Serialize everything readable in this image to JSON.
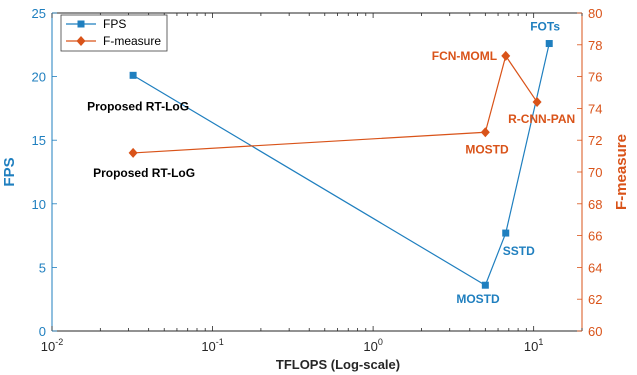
{
  "chart_data": {
    "type": "line",
    "xlabel": "TFLOPS (Log-scale)",
    "ylabel_left": "FPS",
    "ylabel_right": "F-measure",
    "x_scale": "log",
    "xlim": [
      0.01,
      20
    ],
    "ylim_left": [
      0,
      25
    ],
    "ylim_right": [
      60,
      80
    ],
    "x_ticks": [
      {
        "value": 0.01,
        "base": "10",
        "exp": "-2"
      },
      {
        "value": 0.1,
        "base": "10",
        "exp": "-1"
      },
      {
        "value": 1,
        "base": "10",
        "exp": "0"
      },
      {
        "value": 10,
        "base": "10",
        "exp": "1"
      }
    ],
    "y_left_ticks": [
      "0",
      "5",
      "10",
      "15",
      "20",
      "25"
    ],
    "y_right_ticks": [
      "60",
      "62",
      "64",
      "66",
      "68",
      "70",
      "72",
      "74",
      "76",
      "78",
      "80"
    ],
    "grid": false,
    "legend_position": "top-left",
    "series": [
      {
        "name": "FPS",
        "axis": "left",
        "color": "#1f7fbf",
        "marker": "square",
        "points": [
          {
            "x": 0.032,
            "y": 20.1,
            "label": "Proposed RT-LoG"
          },
          {
            "x": 5.0,
            "y": 3.6,
            "label": "MOSTD"
          },
          {
            "x": 6.7,
            "y": 7.7,
            "label": "SSTD"
          },
          {
            "x": 12.5,
            "y": 22.6,
            "label": "FOTs"
          }
        ]
      },
      {
        "name": "F-measure",
        "axis": "right",
        "color": "#d95319",
        "marker": "diamond",
        "points": [
          {
            "x": 0.032,
            "y": 71.2,
            "label": "Proposed RT-LoG"
          },
          {
            "x": 5.0,
            "y": 72.5,
            "label": "MOSTD"
          },
          {
            "x": 6.7,
            "y": 77.3,
            "label": "FCN-MOML"
          },
          {
            "x": 10.5,
            "y": 74.4,
            "label": "R-CNN-PAN"
          }
        ]
      }
    ]
  }
}
